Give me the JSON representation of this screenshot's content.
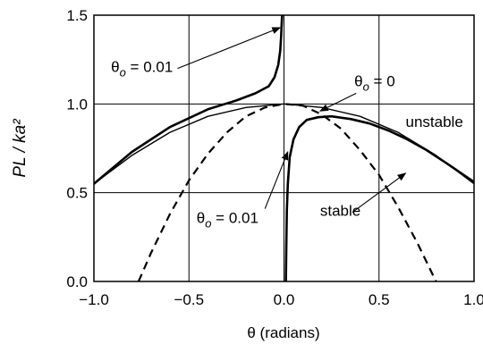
{
  "chart_data": {
    "type": "line",
    "title": "",
    "xlabel": "θ (radians)",
    "ylabel": "PL / ka²",
    "xlim": [
      -1.0,
      1.0
    ],
    "ylim": [
      0.0,
      1.5
    ],
    "xticks": [
      "−1.0",
      "−0.5",
      "0.0",
      "0.5",
      "1.0"
    ],
    "xtick_values": [
      -1.0,
      -0.5,
      0.0,
      0.5,
      1.0
    ],
    "yticks": [
      "0.0",
      "0.5",
      "1.0",
      "1.5"
    ],
    "ytick_values": [
      0.0,
      0.5,
      1.0,
      1.5
    ],
    "grid": true,
    "series": [
      {
        "style": "solid-thin",
        "x": [
          -1.0,
          -0.8,
          -0.6,
          -0.4,
          -0.2,
          0.0,
          0.2,
          0.4,
          0.6,
          0.8,
          1.0
        ],
        "y": [
          0.55,
          0.71,
          0.84,
          0.93,
          0.98,
          1.0,
          0.98,
          0.93,
          0.84,
          0.71,
          0.55
        ]
      },
      {
        "style": "dashed",
        "x": [
          -0.765,
          -0.7,
          -0.6,
          -0.5,
          -0.4,
          -0.3,
          -0.2,
          -0.1,
          0.0,
          0.1,
          0.2,
          0.3,
          0.4,
          0.5,
          0.6,
          0.7,
          0.8
        ],
        "y": [
          0.0,
          0.16,
          0.38,
          0.57,
          0.72,
          0.84,
          0.93,
          0.98,
          1.0,
          0.99,
          0.94,
          0.86,
          0.74,
          0.6,
          0.42,
          0.22,
          0.0
        ]
      },
      {
        "style": "solid-thick",
        "x": [
          -1.0,
          -0.8,
          -0.6,
          -0.4,
          -0.25,
          -0.15,
          -0.08,
          -0.05,
          -0.03,
          -0.02,
          -0.015,
          -0.012,
          -0.01
        ],
        "y": [
          0.55,
          0.73,
          0.87,
          0.97,
          1.02,
          1.06,
          1.1,
          1.15,
          1.22,
          1.3,
          1.38,
          1.45,
          1.5
        ]
      },
      {
        "style": "solid-thick",
        "x": [
          0.01,
          0.012,
          0.015,
          0.02,
          0.03,
          0.05,
          0.08,
          0.12,
          0.18,
          0.25,
          0.35,
          0.45,
          0.55,
          0.65,
          0.75,
          0.85,
          1.0
        ],
        "y": [
          0.0,
          0.2,
          0.4,
          0.55,
          0.7,
          0.8,
          0.87,
          0.91,
          0.925,
          0.93,
          0.915,
          0.89,
          0.85,
          0.8,
          0.74,
          0.67,
          0.56
        ]
      }
    ],
    "annotations": [
      {
        "text": "θo = 0.01",
        "main": "θ",
        "sub": "o",
        "rest": " = 0.01",
        "x": -0.91,
        "y": 1.18,
        "arrow_from": [
          -0.56,
          1.2
        ],
        "arrow_to": [
          -0.02,
          1.43
        ]
      },
      {
        "text": "θo = 0",
        "main": "θ",
        "sub": "o",
        "rest": " = 0",
        "x": 0.37,
        "y": 1.1,
        "arrow_from": [
          0.38,
          1.06
        ],
        "arrow_to": [
          0.19,
          0.96
        ]
      },
      {
        "text": "unstable",
        "x": 0.64,
        "y": 0.87
      },
      {
        "text": "θo = 0.01",
        "main": "θ",
        "sub": "o",
        "rest": " = 0.01",
        "x": -0.46,
        "y": 0.33,
        "arrow_from": [
          -0.1,
          0.41
        ],
        "arrow_to": [
          0.02,
          0.73
        ]
      },
      {
        "text": "stable",
        "x": 0.19,
        "y": 0.37,
        "arrow_from": [
          0.36,
          0.39
        ],
        "arrow_to": [
          0.64,
          0.61
        ]
      }
    ]
  }
}
